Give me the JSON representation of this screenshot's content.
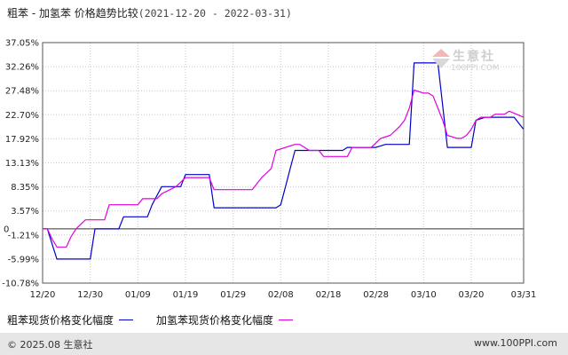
{
  "header": {
    "title": "粗苯 - 加氢苯 价格趋势比较",
    "date_range": "(2021-12-20 - 2022-03-31)"
  },
  "watermark": {
    "name": "生意社",
    "url": "100PPI.COM"
  },
  "footer": {
    "copyright": "© 2025.08 生意社",
    "site": "www.100PPI.com"
  },
  "colors": {
    "series1": "#0000cc",
    "series2": "#e000e0",
    "axis": "#666666",
    "grid": "#c8c8c8",
    "zero_line": "#333333"
  },
  "chart_data": {
    "type": "line",
    "x_tick_labels": [
      "12/20",
      "12/30",
      "01/09",
      "01/19",
      "01/29",
      "02/08",
      "02/18",
      "02/28",
      "03/10",
      "03/20",
      "03/31"
    ],
    "y_tick_labels": [
      "37.05%",
      "32.26%",
      "27.48%",
      "22.70%",
      "17.92%",
      "13.13%",
      "8.35%",
      "3.57%",
      "-1.21%",
      "-5.99%",
      "-10.78%"
    ],
    "y_ticks": [
      37.05,
      32.26,
      27.48,
      22.7,
      17.92,
      13.13,
      8.35,
      3.57,
      -1.21,
      -5.99,
      -10.78
    ],
    "ylim": [
      -10.78,
      37.05
    ],
    "xlim": [
      "2021-12-20",
      "2022-03-31"
    ],
    "grid": true,
    "zero_label": "0",
    "series": [
      {
        "name": "粗苯现货价格变化幅度",
        "color": "#0000cc",
        "points": [
          [
            "2021-12-20",
            0
          ],
          [
            "2021-12-21",
            0
          ],
          [
            "2021-12-22",
            -3.0
          ],
          [
            "2021-12-23",
            -6.0
          ],
          [
            "2021-12-30",
            -6.0
          ],
          [
            "2021-12-31",
            0
          ],
          [
            "2022-01-04",
            0
          ],
          [
            "2022-01-05",
            0
          ],
          [
            "2022-01-06",
            2.4
          ],
          [
            "2022-01-11",
            2.4
          ],
          [
            "2022-01-12",
            4.8
          ],
          [
            "2022-01-14",
            8.4
          ],
          [
            "2022-01-18",
            8.4
          ],
          [
            "2022-01-19",
            10.8
          ],
          [
            "2022-01-24",
            10.8
          ],
          [
            "2022-01-25",
            4.2
          ],
          [
            "2022-02-01",
            4.2
          ],
          [
            "2022-02-07",
            4.2
          ],
          [
            "2022-02-08",
            4.8
          ],
          [
            "2022-02-09",
            8.4
          ],
          [
            "2022-02-10",
            12.0
          ],
          [
            "2022-02-11",
            15.6
          ],
          [
            "2022-02-18",
            15.6
          ],
          [
            "2022-02-21",
            15.6
          ],
          [
            "2022-02-22",
            16.2
          ],
          [
            "2022-02-25",
            16.2
          ],
          [
            "2022-02-28",
            16.2
          ],
          [
            "2022-03-02",
            16.8
          ],
          [
            "2022-03-07",
            16.8
          ],
          [
            "2022-03-08",
            33.0
          ],
          [
            "2022-03-12",
            33.0
          ],
          [
            "2022-03-13",
            33.0
          ],
          [
            "2022-03-15",
            16.2
          ],
          [
            "2022-03-18",
            16.2
          ],
          [
            "2022-03-20",
            16.2
          ],
          [
            "2022-03-21",
            21.6
          ],
          [
            "2022-03-23",
            22.2
          ],
          [
            "2022-03-26",
            22.2
          ],
          [
            "2022-03-28",
            22.2
          ],
          [
            "2022-03-29",
            22.2
          ],
          [
            "2022-03-31",
            19.8
          ]
        ]
      },
      {
        "name": "加氢苯现货价格变化幅度",
        "color": "#e000e0",
        "points": [
          [
            "2021-12-20",
            0
          ],
          [
            "2021-12-21",
            0
          ],
          [
            "2021-12-22",
            -2.0
          ],
          [
            "2021-12-23",
            -3.6
          ],
          [
            "2021-12-25",
            -3.6
          ],
          [
            "2021-12-26",
            -1.5
          ],
          [
            "2021-12-27",
            0
          ],
          [
            "2021-12-29",
            1.8
          ],
          [
            "2022-01-02",
            1.8
          ],
          [
            "2022-01-03",
            4.8
          ],
          [
            "2022-01-09",
            4.8
          ],
          [
            "2022-01-10",
            6.0
          ],
          [
            "2022-01-13",
            6.0
          ],
          [
            "2022-01-14",
            7.0
          ],
          [
            "2022-01-17",
            8.4
          ],
          [
            "2022-01-19",
            10.2
          ],
          [
            "2022-01-24",
            10.2
          ],
          [
            "2022-01-25",
            7.8
          ],
          [
            "2022-02-02",
            7.8
          ],
          [
            "2022-02-04",
            10.2
          ],
          [
            "2022-02-06",
            12.0
          ],
          [
            "2022-02-07",
            15.6
          ],
          [
            "2022-02-11",
            16.8
          ],
          [
            "2022-02-12",
            16.8
          ],
          [
            "2022-02-14",
            15.6
          ],
          [
            "2022-02-16",
            15.6
          ],
          [
            "2022-02-17",
            14.4
          ],
          [
            "2022-02-22",
            14.4
          ],
          [
            "2022-02-23",
            16.2
          ],
          [
            "2022-02-27",
            16.2
          ],
          [
            "2022-03-01",
            18.0
          ],
          [
            "2022-03-03",
            18.6
          ],
          [
            "2022-03-05",
            20.4
          ],
          [
            "2022-03-06",
            21.6
          ],
          [
            "2022-03-07",
            24.0
          ],
          [
            "2022-03-08",
            27.6
          ],
          [
            "2022-03-10",
            27.0
          ],
          [
            "2022-03-11",
            27.0
          ],
          [
            "2022-03-12",
            26.4
          ],
          [
            "2022-03-13",
            24.0
          ],
          [
            "2022-03-14",
            21.6
          ],
          [
            "2022-03-15",
            18.6
          ],
          [
            "2022-03-17",
            18.0
          ],
          [
            "2022-03-18",
            18.0
          ],
          [
            "2022-03-19",
            18.6
          ],
          [
            "2022-03-20",
            19.8
          ],
          [
            "2022-03-21",
            21.6
          ],
          [
            "2022-03-22",
            22.2
          ],
          [
            "2022-03-24",
            22.2
          ],
          [
            "2022-03-25",
            22.8
          ],
          [
            "2022-03-27",
            22.8
          ],
          [
            "2022-03-28",
            23.4
          ],
          [
            "2022-03-31",
            22.2
          ]
        ]
      }
    ]
  }
}
